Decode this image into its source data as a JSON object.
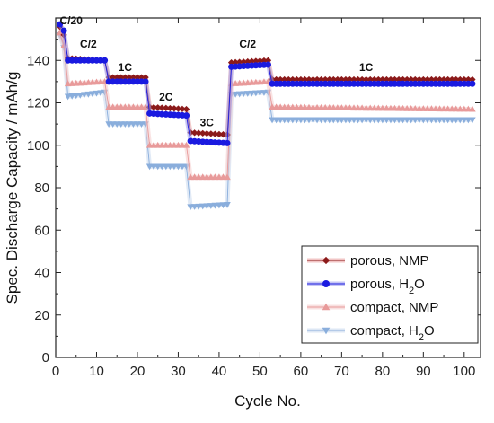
{
  "chart_data": {
    "type": "scatter",
    "xlabel": "Cycle  No.",
    "ylabel": "Spec. Discharge Capacity  /  mAh/g",
    "xlim": [
      0,
      104
    ],
    "ylim": [
      0,
      160
    ],
    "xticks": [
      0,
      10,
      20,
      30,
      40,
      50,
      60,
      70,
      80,
      90,
      100
    ],
    "yticks": [
      0,
      20,
      40,
      60,
      80,
      100,
      120,
      140
    ],
    "grid": false,
    "legend_position": "bottom-right",
    "rate_labels": [
      {
        "text": "C/20",
        "x": 1,
        "y": 157
      },
      {
        "text": "C/2",
        "x": 8,
        "y": 146
      },
      {
        "text": "1C",
        "x": 17,
        "y": 135
      },
      {
        "text": "2C",
        "x": 27,
        "y": 121
      },
      {
        "text": "3C",
        "x": 37,
        "y": 109
      },
      {
        "text": "C/2",
        "x": 47,
        "y": 146
      },
      {
        "text": "1C",
        "x": 76,
        "y": 135
      }
    ],
    "series": [
      {
        "name": "porous, NMP",
        "name_main": "porous, NMP",
        "name_sub": "",
        "name_tail": "",
        "marker": "diamond",
        "color": "#8b1a1a",
        "halo": "#e8a0a0",
        "segments": [
          {
            "x": [
              1,
              2
            ],
            "y": [
              156,
              152
            ]
          },
          {
            "x": [
              3,
              12
            ],
            "y": [
              141,
              140
            ]
          },
          {
            "x": [
              13,
              22
            ],
            "y": [
              132,
              132
            ]
          },
          {
            "x": [
              23,
              32
            ],
            "y": [
              118,
              117
            ]
          },
          {
            "x": [
              33,
              42
            ],
            "y": [
              106,
              105
            ]
          },
          {
            "x": [
              43,
              52
            ],
            "y": [
              139,
              140
            ]
          },
          {
            "x": [
              53,
              102
            ],
            "y": [
              131,
              131
            ]
          }
        ]
      },
      {
        "name": "porous, H2O",
        "name_main": "porous, H",
        "name_sub": "2",
        "name_tail": "O",
        "marker": "circle",
        "color": "#1a1ae0",
        "halo": "#a0a0f0",
        "segments": [
          {
            "x": [
              1,
              2
            ],
            "y": [
              157,
              154
            ]
          },
          {
            "x": [
              3,
              12
            ],
            "y": [
              140,
              140
            ]
          },
          {
            "x": [
              13,
              22
            ],
            "y": [
              130,
              130
            ]
          },
          {
            "x": [
              23,
              32
            ],
            "y": [
              115,
              114
            ]
          },
          {
            "x": [
              33,
              42
            ],
            "y": [
              102,
              101
            ]
          },
          {
            "x": [
              43,
              52
            ],
            "y": [
              137,
              138
            ]
          },
          {
            "x": [
              53,
              102
            ],
            "y": [
              129,
              129
            ]
          }
        ]
      },
      {
        "name": "compact, NMP",
        "name_main": "compact, NMP",
        "name_sub": "",
        "name_tail": "",
        "marker": "triangle-up",
        "color": "#e89a9a",
        "halo": "#f4cccc",
        "segments": [
          {
            "x": [
              1,
              2
            ],
            "y": [
              153,
              147
            ]
          },
          {
            "x": [
              3,
              12
            ],
            "y": [
              129,
              130
            ]
          },
          {
            "x": [
              13,
              22
            ],
            "y": [
              118,
              118
            ]
          },
          {
            "x": [
              23,
              32
            ],
            "y": [
              100,
              100
            ]
          },
          {
            "x": [
              33,
              42
            ],
            "y": [
              85,
              85
            ]
          },
          {
            "x": [
              43,
              52
            ],
            "y": [
              129,
              130
            ]
          },
          {
            "x": [
              53,
              102
            ],
            "y": [
              118,
              117
            ]
          }
        ]
      },
      {
        "name": "compact, H2O",
        "name_main": "compact, H",
        "name_sub": "2",
        "name_tail": "O",
        "marker": "triangle-down",
        "color": "#8aaedc",
        "halo": "#c8d8ee",
        "segments": [
          {
            "x": [
              1,
              2
            ],
            "y": [
              152,
              146
            ]
          },
          {
            "x": [
              3,
              12
            ],
            "y": [
              123,
              125
            ]
          },
          {
            "x": [
              13,
              22
            ],
            "y": [
              110,
              110
            ]
          },
          {
            "x": [
              23,
              32
            ],
            "y": [
              90,
              90
            ]
          },
          {
            "x": [
              33,
              42
            ],
            "y": [
              71,
              72
            ]
          },
          {
            "x": [
              43,
              52
            ],
            "y": [
              124,
              125
            ]
          },
          {
            "x": [
              53,
              102
            ],
            "y": [
              112,
              112
            ]
          }
        ]
      }
    ]
  }
}
